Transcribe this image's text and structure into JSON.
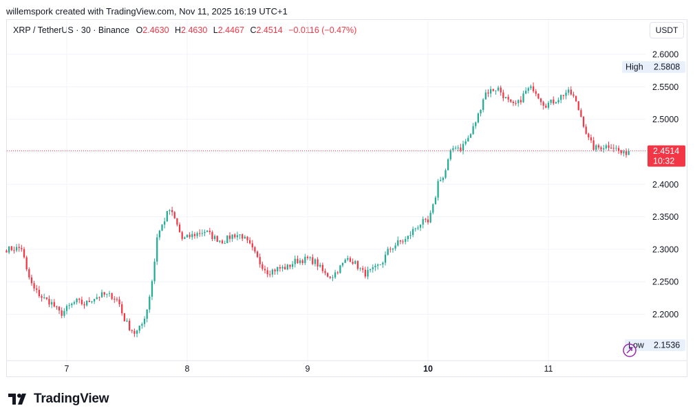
{
  "header": {
    "credit": "willemspork created with TradingView.com, Nov 11, 2025 16:19 UTC+1"
  },
  "legend": {
    "symbol": "XRP / TetherUS · 30 · Binance",
    "o_label": "O",
    "o_value": "2.4630",
    "h_label": "H",
    "h_value": "2.4630",
    "l_label": "L",
    "l_value": "2.4467",
    "c_label": "C",
    "c_value": "2.4514",
    "change": "−0.0116 (−0.47%)"
  },
  "currency_button": "USDT",
  "brand": {
    "name": "TradingView"
  },
  "colors": {
    "up": "#22ab94",
    "down": "#f23645",
    "grid": "#f0f3fa",
    "text": "#131722",
    "badge_bg": "#e8f0fb"
  },
  "chart_data": {
    "type": "candlestick",
    "symbol": "XRP / TetherUS",
    "interval": "30",
    "exchange": "Binance",
    "ylim": [
      2.145,
      2.62
    ],
    "y_ticks": [
      "2.6000",
      "2.5500",
      "2.5000",
      "2.4500",
      "2.4000",
      "2.3500",
      "2.3000",
      "2.2500",
      "2.2000"
    ],
    "x_ticks": [
      {
        "label": "7",
        "bold": false,
        "t": 0
      },
      {
        "label": "8",
        "bold": false,
        "t": 1
      },
      {
        "label": "9",
        "bold": false,
        "t": 2
      },
      {
        "label": "10",
        "bold": true,
        "t": 3
      },
      {
        "label": "11",
        "bold": false,
        "t": 4
      }
    ],
    "x_start_t": -0.5,
    "x_end_t": 4.7,
    "last_price": "2.4514",
    "last_price_value": 2.4514,
    "countdown": "10:32",
    "high_label": "High",
    "high_value": "2.5808",
    "high_price": 2.5808,
    "low_label": "Low",
    "low_value": "2.1536",
    "low_price": 2.1536,
    "close_waypoints": [
      [
        -0.5,
        2.3
      ],
      [
        -0.37,
        2.302
      ],
      [
        -0.34,
        2.27
      ],
      [
        -0.28,
        2.24
      ],
      [
        -0.2,
        2.225
      ],
      [
        -0.13,
        2.218
      ],
      [
        -0.05,
        2.2
      ],
      [
        0.02,
        2.212
      ],
      [
        0.08,
        2.22
      ],
      [
        0.15,
        2.215
      ],
      [
        0.22,
        2.225
      ],
      [
        0.3,
        2.23
      ],
      [
        0.38,
        2.228
      ],
      [
        0.43,
        2.22
      ],
      [
        0.47,
        2.195
      ],
      [
        0.52,
        2.18
      ],
      [
        0.57,
        2.17
      ],
      [
        0.62,
        2.182
      ],
      [
        0.67,
        2.21
      ],
      [
        0.72,
        2.265
      ],
      [
        0.75,
        2.32
      ],
      [
        0.8,
        2.34
      ],
      [
        0.85,
        2.362
      ],
      [
        0.9,
        2.345
      ],
      [
        0.96,
        2.315
      ],
      [
        1.05,
        2.322
      ],
      [
        1.15,
        2.328
      ],
      [
        1.22,
        2.318
      ],
      [
        1.3,
        2.312
      ],
      [
        1.38,
        2.322
      ],
      [
        1.45,
        2.322
      ],
      [
        1.53,
        2.303
      ],
      [
        1.6,
        2.28
      ],
      [
        1.67,
        2.265
      ],
      [
        1.75,
        2.27
      ],
      [
        1.83,
        2.272
      ],
      [
        1.9,
        2.282
      ],
      [
        2.0,
        2.285
      ],
      [
        2.07,
        2.28
      ],
      [
        2.14,
        2.262
      ],
      [
        2.2,
        2.258
      ],
      [
        2.26,
        2.27
      ],
      [
        2.34,
        2.288
      ],
      [
        2.41,
        2.275
      ],
      [
        2.47,
        2.262
      ],
      [
        2.55,
        2.268
      ],
      [
        2.62,
        2.28
      ],
      [
        2.67,
        2.298
      ],
      [
        2.75,
        2.31
      ],
      [
        2.82,
        2.315
      ],
      [
        2.88,
        2.33
      ],
      [
        2.95,
        2.342
      ],
      [
        3.0,
        2.34
      ],
      [
        3.05,
        2.37
      ],
      [
        3.09,
        2.41
      ],
      [
        3.13,
        2.41
      ],
      [
        3.18,
        2.445
      ],
      [
        3.22,
        2.46
      ],
      [
        3.27,
        2.455
      ],
      [
        3.35,
        2.475
      ],
      [
        3.42,
        2.508
      ],
      [
        3.47,
        2.54
      ],
      [
        3.53,
        2.545
      ],
      [
        3.58,
        2.548
      ],
      [
        3.64,
        2.533
      ],
      [
        3.7,
        2.52
      ],
      [
        3.75,
        2.525
      ],
      [
        3.82,
        2.545
      ],
      [
        3.88,
        2.548
      ],
      [
        3.92,
        2.535
      ],
      [
        3.97,
        2.522
      ],
      [
        4.05,
        2.528
      ],
      [
        4.1,
        2.535
      ],
      [
        4.15,
        2.542
      ],
      [
        4.2,
        2.538
      ],
      [
        4.24,
        2.52
      ],
      [
        4.28,
        2.5
      ],
      [
        4.33,
        2.47
      ],
      [
        4.38,
        2.455
      ],
      [
        4.45,
        2.458
      ],
      [
        4.52,
        2.46
      ],
      [
        4.58,
        2.452
      ],
      [
        4.62,
        2.445
      ],
      [
        4.68,
        2.455
      ]
    ]
  }
}
